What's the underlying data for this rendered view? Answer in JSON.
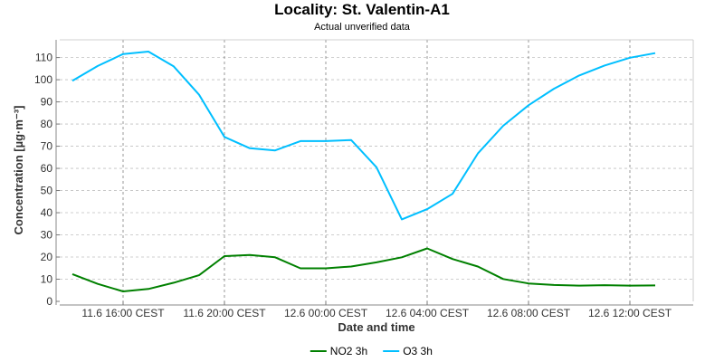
{
  "chart_data": {
    "type": "line",
    "title": "Locality: St. Valentin-A1",
    "subtitle": "Actual unverified data",
    "xlabel": "Date and time",
    "ylabel": "Concentration [µg·m⁻³]",
    "ylim": [
      0,
      118
    ],
    "yticks": [
      0,
      10,
      20,
      30,
      40,
      50,
      60,
      70,
      80,
      90,
      100,
      110
    ],
    "x_hours": [
      0,
      1,
      2,
      3,
      4,
      5,
      6,
      7,
      8,
      9,
      10,
      11,
      12,
      13,
      14,
      15,
      16,
      17,
      18,
      19,
      20,
      21,
      22,
      23
    ],
    "xlim_hours": [
      -0.5,
      24.5
    ],
    "xticks": [
      {
        "hour": 2,
        "label": "11.6 16:00 CEST"
      },
      {
        "hour": 6,
        "label": "11.6 20:00 CEST"
      },
      {
        "hour": 10,
        "label": "12.6 00:00 CEST"
      },
      {
        "hour": 14,
        "label": "12.6 04:00 CEST"
      },
      {
        "hour": 18,
        "label": "12.6 08:00 CEST"
      },
      {
        "hour": 22,
        "label": "12.6 12:00 CEST"
      }
    ],
    "grid": true,
    "legend_position": "bottom",
    "series": [
      {
        "name": "NO2 3h",
        "color": "#008000",
        "values": [
          12.3,
          7.9,
          4.5,
          5.6,
          8.4,
          11.8,
          20.4,
          20.9,
          19.9,
          14.9,
          14.9,
          15.7,
          17.6,
          19.9,
          23.9,
          19.1,
          15.7,
          10.1,
          8.1,
          7.4,
          7.1,
          7.3,
          7.1,
          7.2
        ]
      },
      {
        "name": "O3 3h",
        "color": "#00BFFF",
        "values": [
          99.5,
          106.2,
          111.6,
          112.7,
          106.0,
          93.2,
          74.2,
          69.1,
          68.1,
          72.3,
          72.3,
          72.8,
          60.5,
          37.0,
          41.6,
          48.5,
          66.7,
          79.2,
          88.5,
          95.9,
          101.9,
          106.4,
          109.9,
          112.0
        ]
      }
    ]
  }
}
